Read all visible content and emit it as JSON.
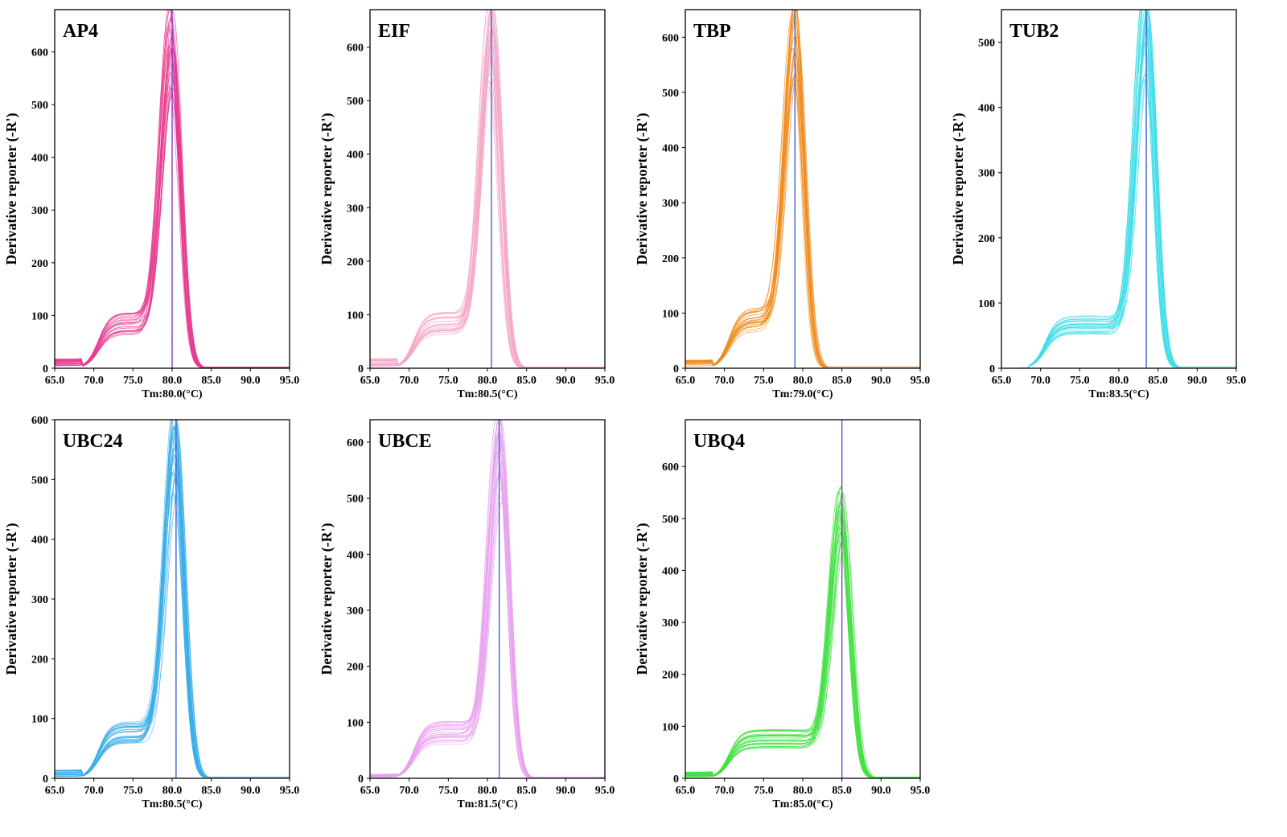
{
  "chart_data": [
    {
      "type": "line",
      "title": "AP4",
      "xlabel": "Tm:80.0(°C)",
      "ylabel": "Derivative reporter (-R')",
      "xlim": [
        65,
        95
      ],
      "ylim": [
        0,
        680
      ],
      "yticks": [
        0,
        100,
        200,
        300,
        400,
        500,
        600
      ],
      "xticks": [
        "65.0",
        "70.0",
        "75.0",
        "80.0",
        "85.0",
        "90.0",
        "95.0"
      ],
      "tm": 80.0,
      "peak": 610,
      "shoulder": 85,
      "baseline": 12,
      "color": "#e6398f",
      "marker_color": "#7a3fd0",
      "curves": 24
    },
    {
      "type": "line",
      "title": "EIF",
      "xlabel": "Tm:80.5(°C)",
      "ylabel": "Derivative reporter (-R')",
      "xlim": [
        65,
        95
      ],
      "ylim": [
        0,
        670
      ],
      "yticks": [
        0,
        100,
        200,
        300,
        400,
        500,
        600
      ],
      "xticks": [
        "65.0",
        "70.0",
        "75.0",
        "80.0",
        "85.0",
        "90.0",
        "95.0"
      ],
      "tm": 80.5,
      "peak": 610,
      "shoulder": 85,
      "baseline": 12,
      "color": "#f4a7c8",
      "marker_color": "#3d63d6",
      "curves": 24
    },
    {
      "type": "line",
      "title": "TBP",
      "xlabel": "Tm:79.0(°C)",
      "ylabel": "Derivative reporter (-R')",
      "xlim": [
        65,
        95
      ],
      "ylim": [
        0,
        650
      ],
      "yticks": [
        0,
        100,
        200,
        300,
        400,
        500,
        600
      ],
      "xticks": [
        "65.0",
        "70.0",
        "75.0",
        "80.0",
        "85.0",
        "90.0",
        "95.0"
      ],
      "tm": 79.0,
      "peak": 600,
      "shoulder": 90,
      "baseline": 10,
      "color": "#f08a1c",
      "marker_color": "#3d63d6",
      "curves": 24
    },
    {
      "type": "line",
      "title": "TUB2",
      "xlabel": "Tm:83.5(°C)",
      "ylabel": "Derivative reporter (-R')",
      "xlim": [
        65,
        95
      ],
      "ylim": [
        0,
        550
      ],
      "yticks": [
        0,
        100,
        200,
        300,
        400,
        500
      ],
      "xticks": [
        "65.0",
        "70.0",
        "75.0",
        "80.0",
        "85.0",
        "90.0",
        "95.0"
      ],
      "tm": 83.5,
      "peak": 520,
      "shoulder": 65,
      "baseline": 0,
      "color": "#3fdde8",
      "marker_color": "#3d63d6",
      "curves": 24
    },
    {
      "type": "line",
      "title": "UBC24",
      "xlabel": "Tm:80.5(°C)",
      "ylabel": "Derivative reporter (-R')",
      "xlim": [
        65,
        95
      ],
      "ylim": [
        0,
        600
      ],
      "yticks": [
        0,
        100,
        200,
        300,
        400,
        500,
        600
      ],
      "xticks": [
        "65.0",
        "70.0",
        "75.0",
        "80.0",
        "85.0",
        "90.0",
        "95.0"
      ],
      "tm": 80.5,
      "peak": 555,
      "shoulder": 78,
      "baseline": 10,
      "color": "#3aaee8",
      "marker_color": "#3d63d6",
      "curves": 24
    },
    {
      "type": "line",
      "title": "UBCE",
      "xlabel": "Tm:81.5(°C)",
      "ylabel": "Derivative reporter (-R')",
      "xlim": [
        65,
        95
      ],
      "ylim": [
        0,
        640
      ],
      "yticks": [
        0,
        100,
        200,
        300,
        400,
        500,
        600
      ],
      "xticks": [
        "65.0",
        "70.0",
        "75.0",
        "80.0",
        "85.0",
        "90.0",
        "95.0"
      ],
      "tm": 81.5,
      "peak": 575,
      "shoulder": 82,
      "baseline": 5,
      "color": "#e8a0ee",
      "marker_color": "#3d63d6",
      "curves": 24
    },
    {
      "type": "line",
      "title": "UBQ4",
      "xlabel": "Tm:85.0(°C)",
      "ylabel": "Derivative reporter (-R')",
      "xlim": [
        65,
        95
      ],
      "ylim": [
        0,
        690
      ],
      "yticks": [
        0,
        100,
        200,
        300,
        400,
        500,
        600
      ],
      "xticks": [
        "65.0",
        "70.0",
        "75.0",
        "80.0",
        "85.0",
        "90.0",
        "95.0"
      ],
      "tm": 85.0,
      "peak": 505,
      "shoulder": 75,
      "baseline": 8,
      "color": "#43e043",
      "marker_color": "#8a3fc8",
      "curves": 24
    }
  ]
}
